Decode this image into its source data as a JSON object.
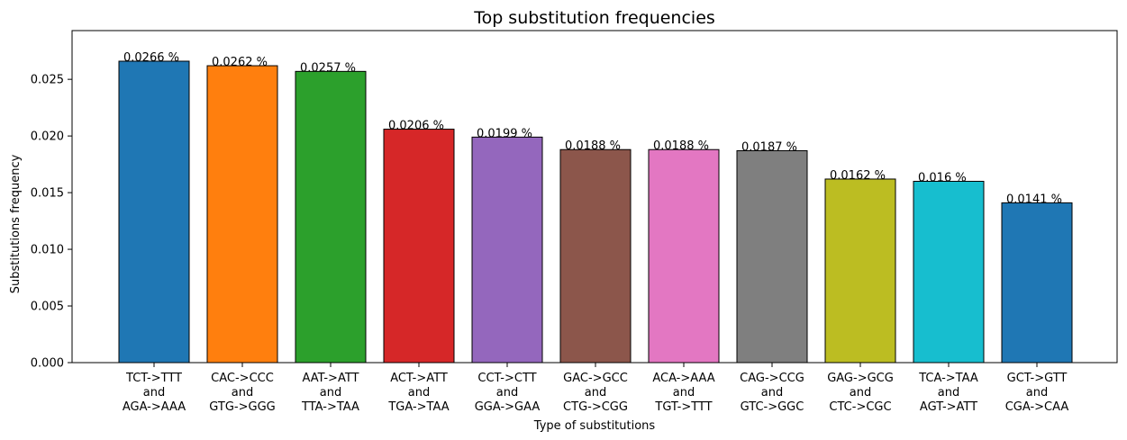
{
  "chart_data": {
    "type": "bar",
    "title": "Top substitution frequencies",
    "xlabel": "Type of substitutions",
    "ylabel": "Substitutions frequency",
    "ylim": [
      0,
      0.0293
    ],
    "yticks": [
      "0.000",
      "0.005",
      "0.010",
      "0.015",
      "0.020",
      "0.025"
    ],
    "ytick_values": [
      0,
      0.005,
      0.01,
      0.015,
      0.02,
      0.025
    ],
    "categories": [
      [
        "TCT->TTT",
        "and",
        "AGA->AAA"
      ],
      [
        "CAC->CCC",
        "and",
        "GTG->GGG"
      ],
      [
        "AAT->ATT",
        "and",
        "TTA->TAA"
      ],
      [
        "ACT->ATT",
        "and",
        "TGA->TAA"
      ],
      [
        "CCT->CTT",
        "and",
        "GGA->GAA"
      ],
      [
        "GAC->GCC",
        "and",
        "CTG->CGG"
      ],
      [
        "ACA->AAA",
        "and",
        "TGT->TTT"
      ],
      [
        "CAG->CCG",
        "and",
        "GTC->GGC"
      ],
      [
        "GAG->GCG",
        "and",
        "CTC->CGC"
      ],
      [
        "TCA->TAA",
        "and",
        "AGT->ATT"
      ],
      [
        "GCT->GTT",
        "and",
        "CGA->CAA"
      ]
    ],
    "values": [
      0.0266,
      0.0262,
      0.0257,
      0.0206,
      0.0199,
      0.0188,
      0.0188,
      0.0187,
      0.0162,
      0.016,
      0.0141
    ],
    "data_labels": [
      "0.0266 %",
      "0.0262 %",
      "0.0257 %",
      "0.0206 %",
      "0.0199 %",
      "0.0188 %",
      "0.0188 %",
      "0.0187 %",
      "0.0162 %",
      "0.016 %",
      "0.0141 %"
    ],
    "colors": [
      "#1f77b4",
      "#ff7f0e",
      "#2ca02c",
      "#d62728",
      "#9467bd",
      "#8c564b",
      "#e377c2",
      "#7f7f7f",
      "#bcbd22",
      "#17becf",
      "#1f77b4"
    ],
    "grid": false,
    "legend": "none"
  }
}
